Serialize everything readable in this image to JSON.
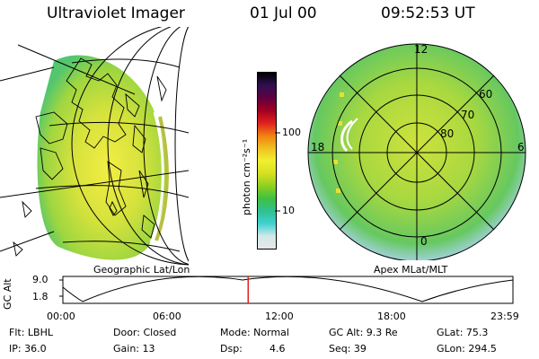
{
  "header": {
    "instrument": "Ultraviolet Imager",
    "date": "01 Jul 00",
    "time": "09:52:53 UT"
  },
  "colorbar": {
    "unit_label": "photon cm⁻²s⁻¹",
    "ticks": [
      "100",
      "10"
    ],
    "stops": [
      "#e8e8e8",
      "#cfe8e8",
      "#40d0d0",
      "#30c090",
      "#40c040",
      "#90d020",
      "#d8e020",
      "#f0f030",
      "#f0c020",
      "#f08010",
      "#e02020",
      "#a00020",
      "#600040",
      "#301050",
      "#000000"
    ]
  },
  "left_panel": {
    "caption": "Geographic Lat/Lon"
  },
  "right_panel": {
    "caption": "Apex MLat/MLT",
    "mlt_labels": [
      "12",
      "18",
      "6",
      "0"
    ],
    "lat_labels": [
      "60",
      "70",
      "80"
    ]
  },
  "orbit": {
    "axis_label": "GC Alt",
    "y_ticks": [
      "9.0",
      "1.8"
    ],
    "time_ticks": [
      "00:00",
      "06:00",
      "12:00",
      "18:00",
      "23:59"
    ],
    "marker_time_hours": 9.88
  },
  "status": {
    "filter": "Flt: LBHL",
    "door": "Door: Closed",
    "mode": "Mode: Normal",
    "gc_alt": "GC Alt: 9.3 Re",
    "glat": "GLat:  75.3",
    "ip": "IP: 36.0",
    "gain": "Gain: 13",
    "dsp_label": "Dsp:",
    "dsp_value": "4.6",
    "seq": "Seq: 39",
    "glon": "GLon: 294.5"
  }
}
